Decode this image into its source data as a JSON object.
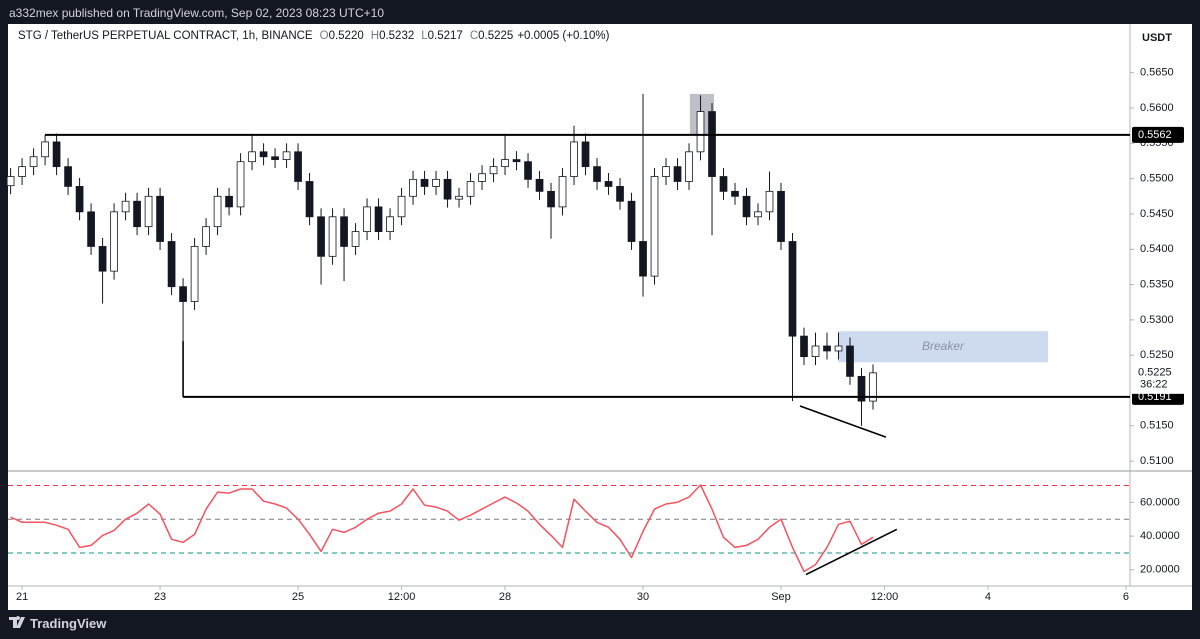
{
  "header": {
    "publisher": "a332mex published on TradingView.com, Sep 02, 2023 08:23 UTC+10",
    "brand": "TradingView"
  },
  "chart_data": [
    {
      "type": "candlestick",
      "title": "STG / TetherUS PERPETUAL CONTRACT, 1h, BINANCE",
      "ohlc_header": [
        [
          "O",
          "0.5220"
        ],
        [
          "H",
          "0.5232"
        ],
        [
          "L",
          "0.5217"
        ],
        [
          "C",
          "0.5225"
        ]
      ],
      "change": "+0.0005 (+0.10%)",
      "currency": "USDT",
      "x": [
        -4,
        0,
        4,
        8,
        12,
        16,
        20,
        24,
        28,
        32,
        36,
        40,
        44,
        48,
        52,
        56,
        60,
        64,
        68,
        72,
        76,
        80,
        84,
        88,
        92,
        96,
        100,
        104,
        108,
        112,
        116,
        120,
        124,
        128,
        132,
        136,
        140,
        144,
        148,
        152,
        156,
        160,
        164,
        168,
        172,
        176,
        180,
        184,
        188,
        192,
        196,
        200,
        204,
        208,
        212,
        216,
        220,
        224,
        228,
        232,
        236,
        240,
        244,
        248,
        252,
        256,
        260,
        264,
        268,
        272,
        276,
        280,
        284,
        288,
        292,
        296
      ],
      "open": [
        0.549,
        0.5503,
        0.5517,
        0.5531,
        0.5552,
        0.5517,
        0.5489,
        0.5453,
        0.5404,
        0.5369,
        0.5453,
        0.5468,
        0.5432,
        0.5475,
        0.5411,
        0.5347,
        0.5326,
        0.5404,
        0.5432,
        0.5475,
        0.546,
        0.5524,
        0.5538,
        0.5531,
        0.5527,
        0.5538,
        0.5496,
        0.5446,
        0.539,
        0.5446,
        0.5404,
        0.5425,
        0.546,
        0.5425,
        0.5446,
        0.5475,
        0.5499,
        0.5489,
        0.5499,
        0.5471,
        0.5475,
        0.5496,
        0.5507,
        0.5517,
        0.5527,
        0.5524,
        0.5499,
        0.5482,
        0.546,
        0.5503,
        0.5552,
        0.5517,
        0.5496,
        0.5489,
        0.5468,
        0.5411,
        0.5362,
        0.5503,
        0.5517,
        0.5496,
        0.5538,
        0.5595,
        0.5503,
        0.5482,
        0.5475,
        0.5446,
        0.5453,
        0.5482,
        0.5411,
        0.5277,
        0.5248,
        0.5263,
        0.5256,
        0.5263,
        0.522,
        0.5185
      ],
      "high": [
        0.5515,
        0.5529,
        0.5543,
        0.5562,
        0.5564,
        0.5529,
        0.5501,
        0.5465,
        0.5416,
        0.5465,
        0.548,
        0.548,
        0.5487,
        0.5487,
        0.5423,
        0.5359,
        0.5416,
        0.5444,
        0.5487,
        0.5487,
        0.5536,
        0.5562,
        0.555,
        0.5543,
        0.555,
        0.555,
        0.5508,
        0.5458,
        0.5458,
        0.5458,
        0.5437,
        0.5472,
        0.5472,
        0.5458,
        0.5487,
        0.5511,
        0.5511,
        0.5511,
        0.5511,
        0.5487,
        0.5508,
        0.5519,
        0.5529,
        0.5562,
        0.5539,
        0.5536,
        0.5511,
        0.5494,
        0.5515,
        0.5575,
        0.5564,
        0.5529,
        0.5508,
        0.5501,
        0.548,
        0.562,
        0.5515,
        0.5529,
        0.5529,
        0.555,
        0.5618,
        0.5607,
        0.5515,
        0.5494,
        0.5487,
        0.5465,
        0.551,
        0.5494,
        0.5423,
        0.5289,
        0.5282,
        0.5282,
        0.5282,
        0.5275,
        0.5232,
        0.5237
      ],
      "low": [
        0.5478,
        0.5491,
        0.5505,
        0.5519,
        0.5505,
        0.5477,
        0.5441,
        0.5392,
        0.5323,
        0.5357,
        0.5441,
        0.542,
        0.542,
        0.5399,
        0.5335,
        0.527,
        0.5314,
        0.5392,
        0.542,
        0.5448,
        0.5448,
        0.5512,
        0.5519,
        0.5515,
        0.5515,
        0.5484,
        0.5434,
        0.535,
        0.5378,
        0.5355,
        0.5392,
        0.5413,
        0.5413,
        0.5413,
        0.5434,
        0.5463,
        0.5477,
        0.5477,
        0.5459,
        0.5459,
        0.5463,
        0.5484,
        0.5495,
        0.5505,
        0.5512,
        0.5487,
        0.547,
        0.5415,
        0.5448,
        0.5491,
        0.5505,
        0.5484,
        0.5477,
        0.5456,
        0.5399,
        0.5333,
        0.535,
        0.5491,
        0.5484,
        0.5484,
        0.5526,
        0.542,
        0.547,
        0.5463,
        0.5434,
        0.5434,
        0.5441,
        0.5399,
        0.5185,
        0.5236,
        0.5236,
        0.5244,
        0.5244,
        0.5208,
        0.515,
        0.5173
      ],
      "close": [
        0.5503,
        0.5517,
        0.5531,
        0.5552,
        0.5517,
        0.5489,
        0.5453,
        0.5404,
        0.5369,
        0.5453,
        0.5468,
        0.5432,
        0.5475,
        0.5411,
        0.5347,
        0.5326,
        0.5404,
        0.5432,
        0.5475,
        0.546,
        0.5524,
        0.5538,
        0.5531,
        0.5527,
        0.5538,
        0.5496,
        0.5446,
        0.539,
        0.5446,
        0.5404,
        0.5425,
        0.546,
        0.5425,
        0.5446,
        0.5475,
        0.5499,
        0.5489,
        0.5499,
        0.5471,
        0.5475,
        0.5496,
        0.5507,
        0.5517,
        0.5527,
        0.5524,
        0.5499,
        0.5482,
        0.546,
        0.5503,
        0.5552,
        0.5517,
        0.5496,
        0.5489,
        0.5468,
        0.5411,
        0.5362,
        0.5503,
        0.5517,
        0.5496,
        0.5538,
        0.5595,
        0.5503,
        0.5482,
        0.5475,
        0.5446,
        0.5453,
        0.5482,
        0.5411,
        0.5277,
        0.5248,
        0.5263,
        0.5256,
        0.5263,
        0.522,
        0.5185,
        0.5225
      ],
      "up_color": "#ffffff",
      "down_color": "#131722",
      "wick_color": "#131722",
      "xlim": [
        -4.9,
        385.4
      ],
      "xticks": [
        {
          "value": 0,
          "label": "21"
        },
        {
          "value": 48,
          "label": "23"
        },
        {
          "value": 96,
          "label": "25"
        },
        {
          "value": 132,
          "label": "12:00"
        },
        {
          "value": 168,
          "label": "28"
        },
        {
          "value": 216,
          "label": "30"
        },
        {
          "value": 264,
          "label": "Sep"
        },
        {
          "value": 300,
          "label": "12:00"
        },
        {
          "value": 336,
          "label": "4"
        },
        {
          "value": 384,
          "label": "6"
        }
      ],
      "ylim": [
        0.5086,
        0.5719
      ],
      "yticks": [
        {
          "value": 0.51,
          "label": "0.5100"
        },
        {
          "value": 0.515,
          "label": "0.5150"
        },
        {
          "value": 0.525,
          "label": "0.5250"
        },
        {
          "value": 0.53,
          "label": "0.5300"
        },
        {
          "value": 0.535,
          "label": "0.5350"
        },
        {
          "value": 0.54,
          "label": "0.5400"
        },
        {
          "value": 0.545,
          "label": "0.5450"
        },
        {
          "value": 0.55,
          "label": "0.5500"
        },
        {
          "value": 0.555,
          "label": "0.5550"
        },
        {
          "value": 0.56,
          "label": "0.5600"
        },
        {
          "value": 0.565,
          "label": "0.5650"
        }
      ],
      "last_price": {
        "value": 0.5225,
        "label": "0.5225"
      },
      "countdown": "36:22",
      "levels": [
        {
          "value": 0.5562,
          "label": "0.5562",
          "x_start": 8
        },
        {
          "value": 0.5191,
          "label": "0.5191",
          "x_start": 56
        }
      ],
      "zones": [
        {
          "x": [
            232.3,
            240.7
          ],
          "y": [
            0.5562,
            0.562
          ],
          "color": "#b2b5be"
        },
        {
          "x": [
            283.8,
            356.9
          ],
          "y": [
            0.524,
            0.5284
          ],
          "color": "#c5d4ec",
          "label": "Breaker"
        }
      ],
      "trend_lines": [
        {
          "x": [
            56,
            56
          ],
          "y": [
            0.5191,
            0.527
          ]
        },
        {
          "x": [
            270.6,
            300.5
          ],
          "y": [
            0.5178,
            0.5134
          ]
        }
      ]
    },
    {
      "type": "line",
      "x": [
        -4,
        0,
        4,
        8,
        12,
        16,
        20,
        24,
        28,
        32,
        36,
        40,
        44,
        48,
        52,
        56,
        60,
        64,
        68,
        72,
        76,
        80,
        84,
        88,
        92,
        96,
        100,
        104,
        108,
        112,
        116,
        120,
        124,
        128,
        132,
        136,
        140,
        144,
        148,
        152,
        156,
        160,
        164,
        168,
        172,
        176,
        180,
        184,
        188,
        192,
        196,
        200,
        204,
        208,
        212,
        216,
        220,
        224,
        228,
        232,
        236,
        240,
        244,
        248,
        252,
        256,
        260,
        264,
        268,
        272,
        276,
        280,
        284,
        288,
        292,
        296
      ],
      "values": [
        51.2,
        48.2,
        48.2,
        48.2,
        46.4,
        44.0,
        33.3,
        34.5,
        40.4,
        43.4,
        50.0,
        53.6,
        59.0,
        53.0,
        38.1,
        36.3,
        41.0,
        56.0,
        66.1,
        65.5,
        67.9,
        67.9,
        60.7,
        59.0,
        56.6,
        50.0,
        41.0,
        30.9,
        44.0,
        42.2,
        45.2,
        50.0,
        53.6,
        54.8,
        59.0,
        67.9,
        58.4,
        57.2,
        54.8,
        49.4,
        52.4,
        56.0,
        59.6,
        63.1,
        59.6,
        54.8,
        47.0,
        40.4,
        33.3,
        61.9,
        54.8,
        48.2,
        45.2,
        38.1,
        27.3,
        42.8,
        56.0,
        59.0,
        60.1,
        63.1,
        70.3,
        56.0,
        39.3,
        33.3,
        34.5,
        38.1,
        45.2,
        50.0,
        33.3,
        19.0,
        23.1,
        33.3,
        47.0,
        48.8,
        35.1,
        39.3
      ],
      "color": "#f7525f",
      "xlim": [
        -4.9,
        385.4
      ],
      "ylim": [
        11,
        78
      ],
      "yticks": [
        {
          "value": 20,
          "label": "20.0000"
        },
        {
          "value": 40,
          "label": "40.0000"
        },
        {
          "value": 60,
          "label": "60.0000"
        }
      ],
      "levels": [
        {
          "value": 70,
          "color": "#f23645"
        },
        {
          "value": 50,
          "color": "#787b86"
        },
        {
          "value": 30,
          "color": "#089981"
        }
      ],
      "trend_lines": [
        {
          "x": [
            272.7,
            304.3
          ],
          "y": [
            17.2,
            44.0
          ]
        }
      ]
    }
  ]
}
